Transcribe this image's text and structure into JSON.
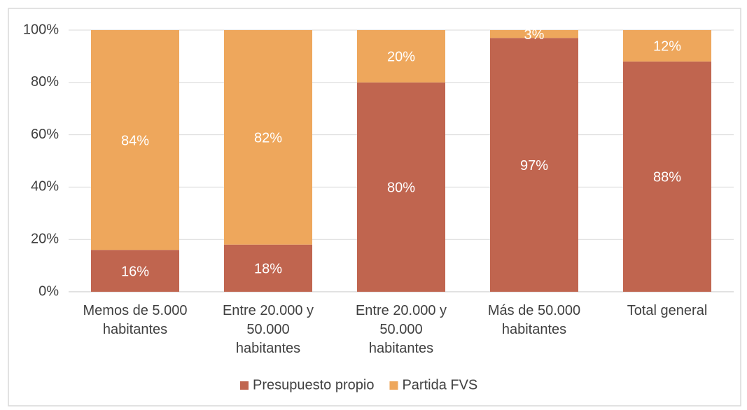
{
  "chart_data": {
    "type": "stacked_bar",
    "categories": [
      "Memos de 5.000\nhabitantes",
      "Entre 20.000 y\n50.000\nhabitantes",
      "Entre 20.000 y\n50.000\nhabitantes",
      "Más de 50.000\nhabitantes",
      "Total general"
    ],
    "series": [
      {
        "name": "Presupuesto propio",
        "color": "#c0654f",
        "values": [
          16,
          18,
          80,
          97,
          88
        ],
        "value_labels": [
          "16%",
          "18%",
          "80%",
          "97%",
          "88%"
        ]
      },
      {
        "name": "Partida FVS",
        "color": "#eea75c",
        "values": [
          84,
          82,
          20,
          3,
          12
        ],
        "value_labels": [
          "84%",
          "82%",
          "20%",
          "3%",
          "12%"
        ]
      }
    ],
    "ylim": [
      0,
      100
    ],
    "yticks": [
      {
        "value": 0,
        "label": "0%"
      },
      {
        "value": 20,
        "label": "20%"
      },
      {
        "value": 40,
        "label": "40%"
      },
      {
        "value": 60,
        "label": "60%"
      },
      {
        "value": 80,
        "label": "80%"
      },
      {
        "value": 100,
        "label": "100%"
      }
    ],
    "grid": true,
    "legend": "bottom"
  }
}
